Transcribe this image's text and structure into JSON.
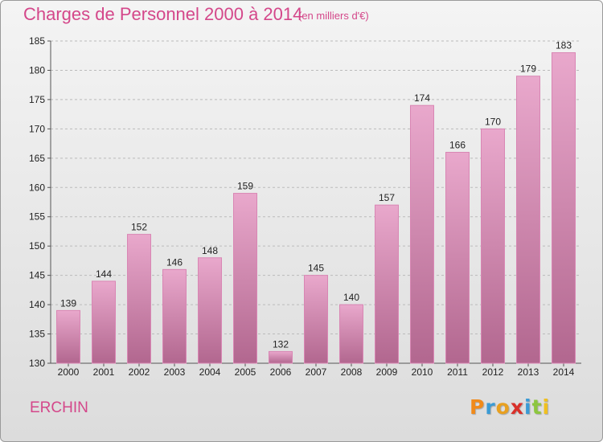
{
  "title": "Charges de Personnel 2000 à 2014",
  "subtitle": "(en milliers d'€)",
  "commune": "ERCHIN",
  "logo": {
    "letters": [
      "P",
      "r",
      "o",
      "x",
      "i",
      "t",
      "i"
    ],
    "colors": [
      "#f08a1a",
      "#3a9bd5",
      "#e8a020",
      "#d9302a",
      "#3a9bd5",
      "#8dc63f",
      "#f0c020"
    ]
  },
  "colors": {
    "bar_top": "#e9a8cc",
    "bar_bottom": "#b2678f",
    "bar_stroke": "#d986b4",
    "grid": "#bbbbbb",
    "text": "#222222",
    "accent": "#d4478a"
  },
  "chart_data": {
    "type": "bar",
    "categories": [
      "2000",
      "2001",
      "2002",
      "2003",
      "2004",
      "2005",
      "2006",
      "2007",
      "2008",
      "2009",
      "2010",
      "2011",
      "2012",
      "2013",
      "2014"
    ],
    "values": [
      139,
      144,
      152,
      146,
      148,
      159,
      132,
      145,
      140,
      157,
      174,
      166,
      170,
      179,
      183
    ],
    "ylim": [
      130,
      185
    ],
    "yticks": [
      130,
      135,
      140,
      145,
      150,
      155,
      160,
      165,
      170,
      175,
      180,
      185
    ],
    "grid": true,
    "data_labels": true
  }
}
